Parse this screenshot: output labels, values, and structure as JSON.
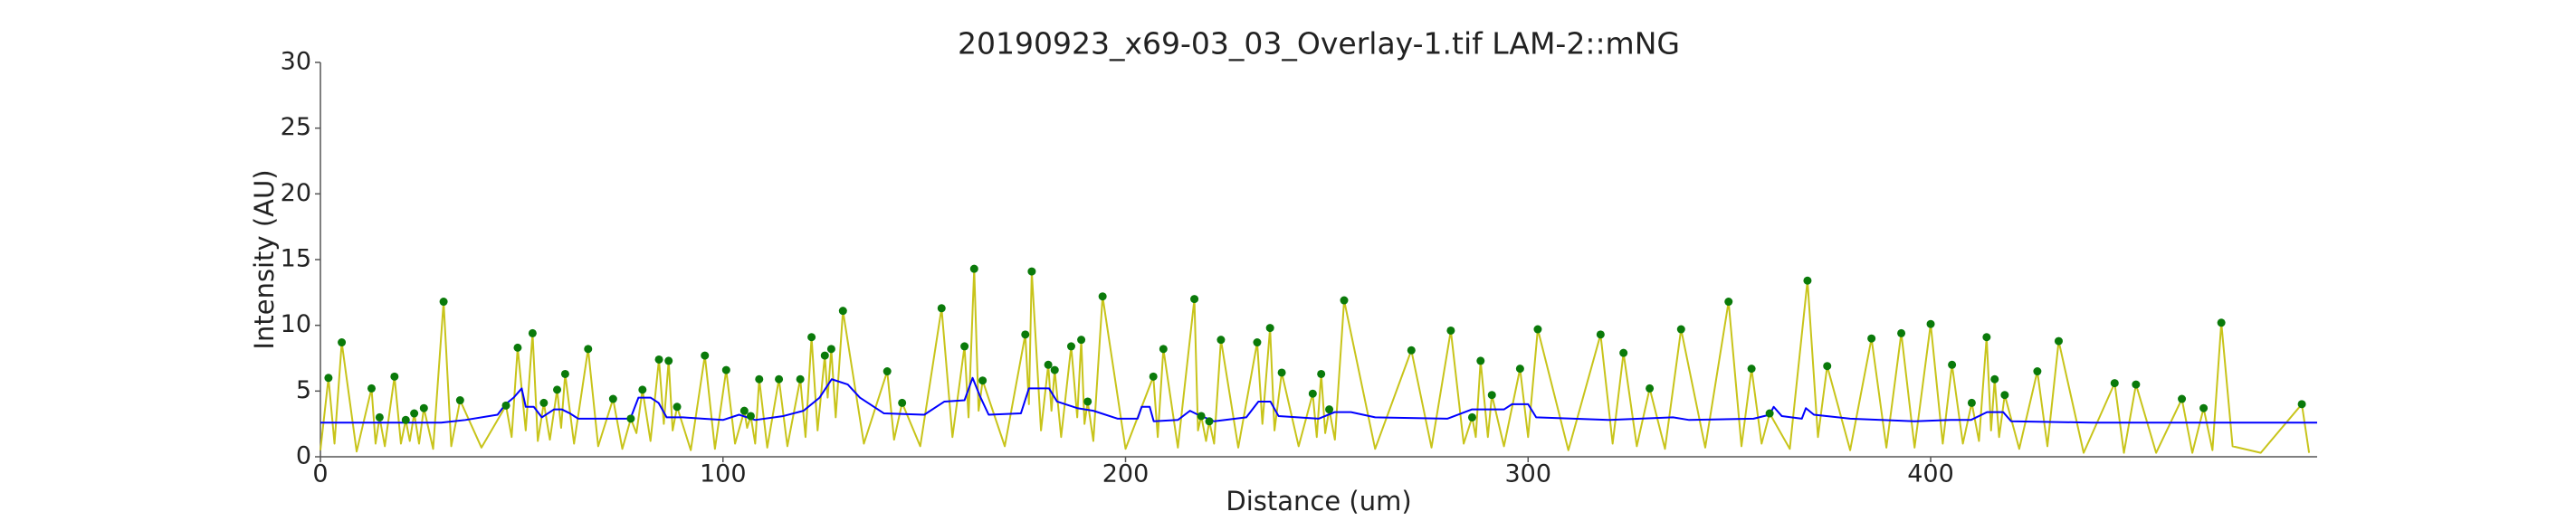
{
  "chart_data": {
    "type": "line",
    "title": "20190923_x69-03_03_Overlay-1.tif LAM-2::mNG",
    "x_label": "Distance (um)",
    "y_label": "Intensity (AU)",
    "xlim": [
      0,
      496
    ],
    "ylim": [
      0,
      30
    ],
    "xticks": [
      0,
      100,
      200,
      300,
      400
    ],
    "yticks": [
      0,
      5,
      10,
      15,
      20,
      25,
      30
    ],
    "grid": false,
    "series": [
      {
        "color": "#c8c41a",
        "marker": false,
        "x": [
          0,
          2,
          3.5,
          5.3,
          9,
          12.7,
          13.7,
          14.7,
          16,
          18.4,
          20,
          21.2,
          22.2,
          23.3,
          24.5,
          25.7,
          28,
          30.6,
          32.5,
          34.7,
          40,
          46.1,
          47.5,
          49,
          51,
          52.7,
          54,
          55.5,
          57,
          58.8,
          59.8,
          60.8,
          63,
          66.5,
          69,
          72.7,
          75,
          77.1,
          78.5,
          80,
          82,
          84.1,
          85.3,
          86.5,
          87.5,
          88.6,
          92,
          95.5,
          98,
          100.8,
          103,
          105.3,
          106,
          106.9,
          108,
          109,
          111,
          113.9,
          116,
          119.2,
          120.5,
          122,
          123.5,
          125.3,
          126,
          126.9,
          128,
          129.8,
          135,
          140.8,
          142.5,
          144.5,
          149,
          154.3,
          157,
          160,
          161,
          162.4,
          163.5,
          164.5,
          170,
          175.1,
          176,
          176.7,
          179,
          180.8,
          181.6,
          182.4,
          184,
          186.5,
          188,
          189,
          189.8,
          190.6,
          192,
          194.3,
          200,
          206.9,
          208,
          209.4,
          213,
          217.1,
          218,
          218.8,
          220,
          220.8,
          222,
          223.7,
          228,
          232.7,
          234,
          235.9,
          237,
          238.8,
          243,
          246.5,
          247.5,
          248.6,
          249.6,
          250.6,
          252,
          254.3,
          262,
          271,
          276,
          280.8,
          284,
          286.1,
          287,
          288.2,
          290,
          291,
          294,
          298,
          300,
          302.4,
          310,
          318,
          321,
          323.7,
          327,
          330.2,
          334,
          338,
          344,
          349.8,
          353,
          355.5,
          358,
          360,
          365,
          369.4,
          372,
          374.3,
          380,
          385.3,
          389,
          392.7,
          396,
          400,
          403,
          405.3,
          408,
          410.2,
          412,
          413.9,
          415,
          415.9,
          417,
          418.4,
          422,
          426.5,
          429,
          431.8,
          438,
          445.7,
          448,
          451,
          456,
          462.4,
          465,
          467.8,
          470,
          472.2,
          475,
          482,
          492.2,
          494
        ],
        "values": [
          0.5,
          6.0,
          1.0,
          8.7,
          0.4,
          5.2,
          1.0,
          3.0,
          0.8,
          6.1,
          1.0,
          2.8,
          1.2,
          3.3,
          1.0,
          3.7,
          0.6,
          11.8,
          0.8,
          4.3,
          0.7,
          3.9,
          1.5,
          8.3,
          2.0,
          9.4,
          1.2,
          4.1,
          1.3,
          5.1,
          2.2,
          6.3,
          1.0,
          8.2,
          0.8,
          4.4,
          0.6,
          2.9,
          1.8,
          5.1,
          1.2,
          7.4,
          2.5,
          7.3,
          2.0,
          3.8,
          0.5,
          7.7,
          0.6,
          6.6,
          1.0,
          3.5,
          2.2,
          3.1,
          1.0,
          5.9,
          0.7,
          5.9,
          0.8,
          5.9,
          1.5,
          9.1,
          2.0,
          7.7,
          4.5,
          8.2,
          3.0,
          11.1,
          1.0,
          6.5,
          1.3,
          4.1,
          0.8,
          11.3,
          1.5,
          8.4,
          3.0,
          14.3,
          3.5,
          5.8,
          0.8,
          9.3,
          4.0,
          14.1,
          2.0,
          7.0,
          3.5,
          6.6,
          1.5,
          8.4,
          3.0,
          8.9,
          2.5,
          4.2,
          1.2,
          12.2,
          0.6,
          6.1,
          1.5,
          8.2,
          0.7,
          12.0,
          2.0,
          3.1,
          1.2,
          2.7,
          1.0,
          8.9,
          0.7,
          8.7,
          2.5,
          9.8,
          2.0,
          6.4,
          0.8,
          4.8,
          1.5,
          6.3,
          1.8,
          3.6,
          1.3,
          11.9,
          0.6,
          8.1,
          0.7,
          9.6,
          1.0,
          3.0,
          1.5,
          7.3,
          1.5,
          4.7,
          0.8,
          6.7,
          1.5,
          9.7,
          0.5,
          9.3,
          1.0,
          7.9,
          0.8,
          5.2,
          0.6,
          9.7,
          0.7,
          11.8,
          0.8,
          6.7,
          1.0,
          3.3,
          0.6,
          13.4,
          1.5,
          6.9,
          0.5,
          9.0,
          0.7,
          9.4,
          0.7,
          10.1,
          1.0,
          7.0,
          1.0,
          4.1,
          1.2,
          9.1,
          2.0,
          5.9,
          1.5,
          4.7,
          0.6,
          6.5,
          0.8,
          8.8,
          0.3,
          5.6,
          0.3,
          5.5,
          0.3,
          4.4,
          0.3,
          3.7,
          0.5,
          10.2,
          0.8,
          0.3,
          4.0,
          0.3
        ]
      },
      {
        "color": "#0000ff",
        "marker": false,
        "x": [
          0,
          20,
          30,
          36,
          44,
          46,
          48,
          50,
          51,
          53,
          55,
          58,
          60,
          62,
          64,
          70,
          77,
          79,
          82,
          84,
          86,
          90,
          95,
          100,
          104,
          108,
          115,
          120,
          124,
          127,
          131,
          134,
          140,
          150,
          155,
          160,
          162,
          164,
          166,
          174,
          176,
          181,
          183,
          188,
          192,
          198,
          203,
          204,
          206,
          207,
          213,
          216,
          218,
          222,
          230,
          233,
          236,
          238,
          248,
          252,
          256,
          262,
          280,
          286,
          294,
          296,
          300,
          302,
          320,
          336,
          340,
          356,
          360,
          361,
          363,
          368,
          369,
          371,
          380,
          396,
          405,
          410,
          414,
          418,
          420,
          440,
          496
        ],
        "values": [
          2.6,
          2.6,
          2.6,
          2.8,
          3.2,
          4.0,
          4.5,
          5.2,
          3.8,
          3.8,
          3.0,
          3.6,
          3.6,
          3.3,
          2.9,
          2.9,
          2.9,
          4.5,
          4.5,
          4.1,
          3.0,
          3.0,
          2.9,
          2.8,
          3.2,
          2.8,
          3.1,
          3.5,
          4.5,
          5.9,
          5.5,
          4.5,
          3.3,
          3.2,
          4.2,
          4.3,
          6.0,
          4.5,
          3.2,
          3.3,
          5.2,
          5.2,
          4.2,
          3.7,
          3.5,
          2.9,
          2.9,
          3.8,
          3.8,
          2.7,
          2.8,
          3.5,
          3.2,
          2.7,
          3.0,
          4.2,
          4.2,
          3.1,
          2.9,
          3.4,
          3.4,
          3.0,
          2.9,
          3.6,
          3.6,
          4.0,
          4.0,
          3.0,
          2.8,
          3.0,
          2.8,
          2.9,
          3.2,
          3.8,
          3.1,
          2.9,
          3.7,
          3.2,
          2.9,
          2.7,
          2.8,
          2.8,
          3.4,
          3.4,
          2.7,
          2.6,
          2.6
        ]
      },
      {
        "color": "#0a7a0a",
        "marker": true,
        "x": [
          2,
          5.3,
          12.7,
          14.7,
          18.4,
          21.2,
          23.3,
          25.7,
          30.6,
          34.7,
          46.1,
          49,
          52.7,
          55.5,
          58.8,
          60.8,
          66.5,
          72.7,
          77.1,
          80,
          84.1,
          86.5,
          88.6,
          95.5,
          100.8,
          105.3,
          106.9,
          109,
          113.9,
          119.2,
          122,
          125.3,
          126.9,
          129.8,
          140.8,
          144.5,
          154.3,
          160,
          162.4,
          164.5,
          175.1,
          176.7,
          180.8,
          182.4,
          186.5,
          189,
          190.6,
          194.3,
          206.9,
          209.4,
          217.1,
          218.8,
          220.8,
          223.7,
          232.7,
          235.9,
          238.8,
          246.5,
          248.6,
          250.6,
          254.3,
          271,
          280.8,
          286.1,
          288.2,
          291,
          298,
          302.4,
          318,
          323.7,
          330.2,
          338,
          349.8,
          355.5,
          360,
          369.4,
          374.3,
          385.3,
          392.7,
          400,
          405.3,
          410.2,
          413.9,
          415.9,
          418.4,
          426.5,
          431.8,
          445.7,
          451,
          462.4,
          467.8,
          472.2,
          492.2
        ],
        "values": [
          6.0,
          8.7,
          5.2,
          3.0,
          6.1,
          2.8,
          3.3,
          3.7,
          11.8,
          4.3,
          3.9,
          8.3,
          9.4,
          4.1,
          5.1,
          6.3,
          8.2,
          4.4,
          2.9,
          5.1,
          7.4,
          7.3,
          3.8,
          7.7,
          6.6,
          3.5,
          3.1,
          5.9,
          5.9,
          5.9,
          9.1,
          7.7,
          8.2,
          11.1,
          6.5,
          4.1,
          11.3,
          8.4,
          14.3,
          5.8,
          9.3,
          14.1,
          7.0,
          6.6,
          8.4,
          8.9,
          4.2,
          12.2,
          6.1,
          8.2,
          12.0,
          3.1,
          2.7,
          8.9,
          8.7,
          9.8,
          6.4,
          4.8,
          6.3,
          3.6,
          11.9,
          8.1,
          9.6,
          3.0,
          7.3,
          4.7,
          6.7,
          9.7,
          9.3,
          7.9,
          5.2,
          9.7,
          11.8,
          6.7,
          3.3,
          13.4,
          6.9,
          9.0,
          9.4,
          10.1,
          7.0,
          4.1,
          9.1,
          5.9,
          4.7,
          6.5,
          8.8,
          5.6,
          5.5,
          4.4,
          3.7,
          10.2,
          4.0
        ]
      }
    ]
  }
}
